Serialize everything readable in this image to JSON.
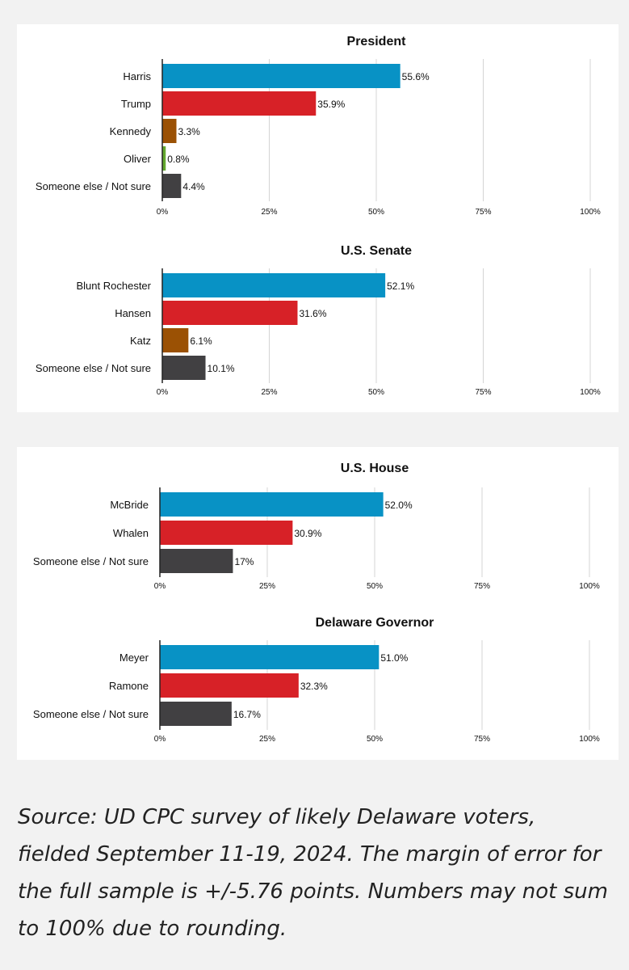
{
  "colors": {
    "dem": "#0892c5",
    "rep": "#d72127",
    "ind": "#9b5104",
    "green": "#62a72e",
    "other": "#414042"
  },
  "chart_data": [
    {
      "type": "bar",
      "orientation": "horizontal",
      "title": "President",
      "categories": [
        "Harris",
        "Trump",
        "Kennedy",
        "Oliver",
        "Someone else / Not sure"
      ],
      "values": [
        55.6,
        35.9,
        3.3,
        0.8,
        4.4
      ],
      "value_labels": [
        "55.6%",
        "35.9%",
        "3.3%",
        "0.8%",
        "4.4%"
      ],
      "bar_colors": [
        "dem",
        "rep",
        "ind",
        "green",
        "other"
      ],
      "xlim": [
        0,
        100
      ],
      "ticks": [
        0,
        25,
        50,
        75,
        100
      ],
      "tick_labels": [
        "0%",
        "25%",
        "50%",
        "75%",
        "100%"
      ],
      "grid": true
    },
    {
      "type": "bar",
      "orientation": "horizontal",
      "title": "U.S. Senate",
      "categories": [
        "Blunt Rochester",
        "Hansen",
        "Katz",
        "Someone else / Not sure"
      ],
      "values": [
        52.1,
        31.6,
        6.1,
        10.1
      ],
      "value_labels": [
        "52.1%",
        "31.6%",
        "6.1%",
        "10.1%"
      ],
      "bar_colors": [
        "dem",
        "rep",
        "ind",
        "other"
      ],
      "xlim": [
        0,
        100
      ],
      "ticks": [
        0,
        25,
        50,
        75,
        100
      ],
      "tick_labels": [
        "0%",
        "25%",
        "50%",
        "75%",
        "100%"
      ],
      "grid": true
    },
    {
      "type": "bar",
      "orientation": "horizontal",
      "title": "U.S. House",
      "categories": [
        "McBride",
        "Whalen",
        "Someone else / Not sure"
      ],
      "values": [
        52.0,
        30.9,
        17
      ],
      "value_labels": [
        "52.0%",
        "30.9%",
        "17%"
      ],
      "bar_colors": [
        "dem",
        "rep",
        "other"
      ],
      "xlim": [
        0,
        100
      ],
      "ticks": [
        0,
        25,
        50,
        75,
        100
      ],
      "tick_labels": [
        "0%",
        "25%",
        "50%",
        "75%",
        "100%"
      ],
      "grid": true
    },
    {
      "type": "bar",
      "orientation": "horizontal",
      "title": "Delaware Governor",
      "categories": [
        "Meyer",
        "Ramone",
        "Someone else / Not sure"
      ],
      "values": [
        51.0,
        32.3,
        16.7
      ],
      "value_labels": [
        "51.0%",
        "32.3%",
        "16.7%"
      ],
      "bar_colors": [
        "dem",
        "rep",
        "other"
      ],
      "xlim": [
        0,
        100
      ],
      "ticks": [
        0,
        25,
        50,
        75,
        100
      ],
      "tick_labels": [
        "0%",
        "25%",
        "50%",
        "75%",
        "100%"
      ],
      "grid": true
    }
  ],
  "source_note": "Source: UD CPC survey of likely Delaware voters, fielded September 11-19, 2024. The margin of error for the full sample is +/-5.76 points. Numbers may not sum to 100% due to rounding."
}
